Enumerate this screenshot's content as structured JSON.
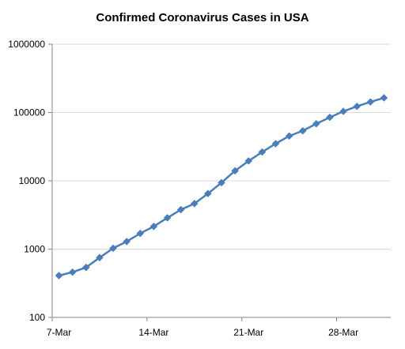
{
  "chart_data": {
    "type": "line",
    "title": "Confirmed Coronavirus Cases in USA",
    "xlabel": "",
    "ylabel": "",
    "y_scale": "log",
    "ylim": [
      100,
      1000000
    ],
    "y_ticks": [
      "100",
      "1000",
      "10000",
      "100000",
      "1000000"
    ],
    "x_tick_labels": [
      "7-Mar",
      "14-Mar",
      "21-Mar",
      "28-Mar"
    ],
    "x": [
      "7-Mar",
      "8-Mar",
      "9-Mar",
      "10-Mar",
      "11-Mar",
      "12-Mar",
      "13-Mar",
      "14-Mar",
      "15-Mar",
      "16-Mar",
      "17-Mar",
      "18-Mar",
      "19-Mar",
      "20-Mar",
      "21-Mar",
      "22-Mar",
      "23-Mar",
      "24-Mar",
      "25-Mar",
      "26-Mar",
      "27-Mar",
      "28-Mar",
      "29-Mar",
      "30-Mar",
      "31-Mar"
    ],
    "series": [
      {
        "values": [
          410,
          460,
          540,
          750,
          1030,
          1290,
          1700,
          2150,
          2870,
          3780,
          4640,
          6500,
          9400,
          14000,
          19500,
          26400,
          35000,
          45300,
          54000,
          68400,
          85000,
          104000,
          123000,
          143000,
          164000
        ]
      }
    ],
    "grid": "horizontal",
    "legend": "none",
    "colors": {
      "series": "#4a7ebb",
      "grid": "#d9d9d9",
      "axis": "#868686"
    }
  }
}
